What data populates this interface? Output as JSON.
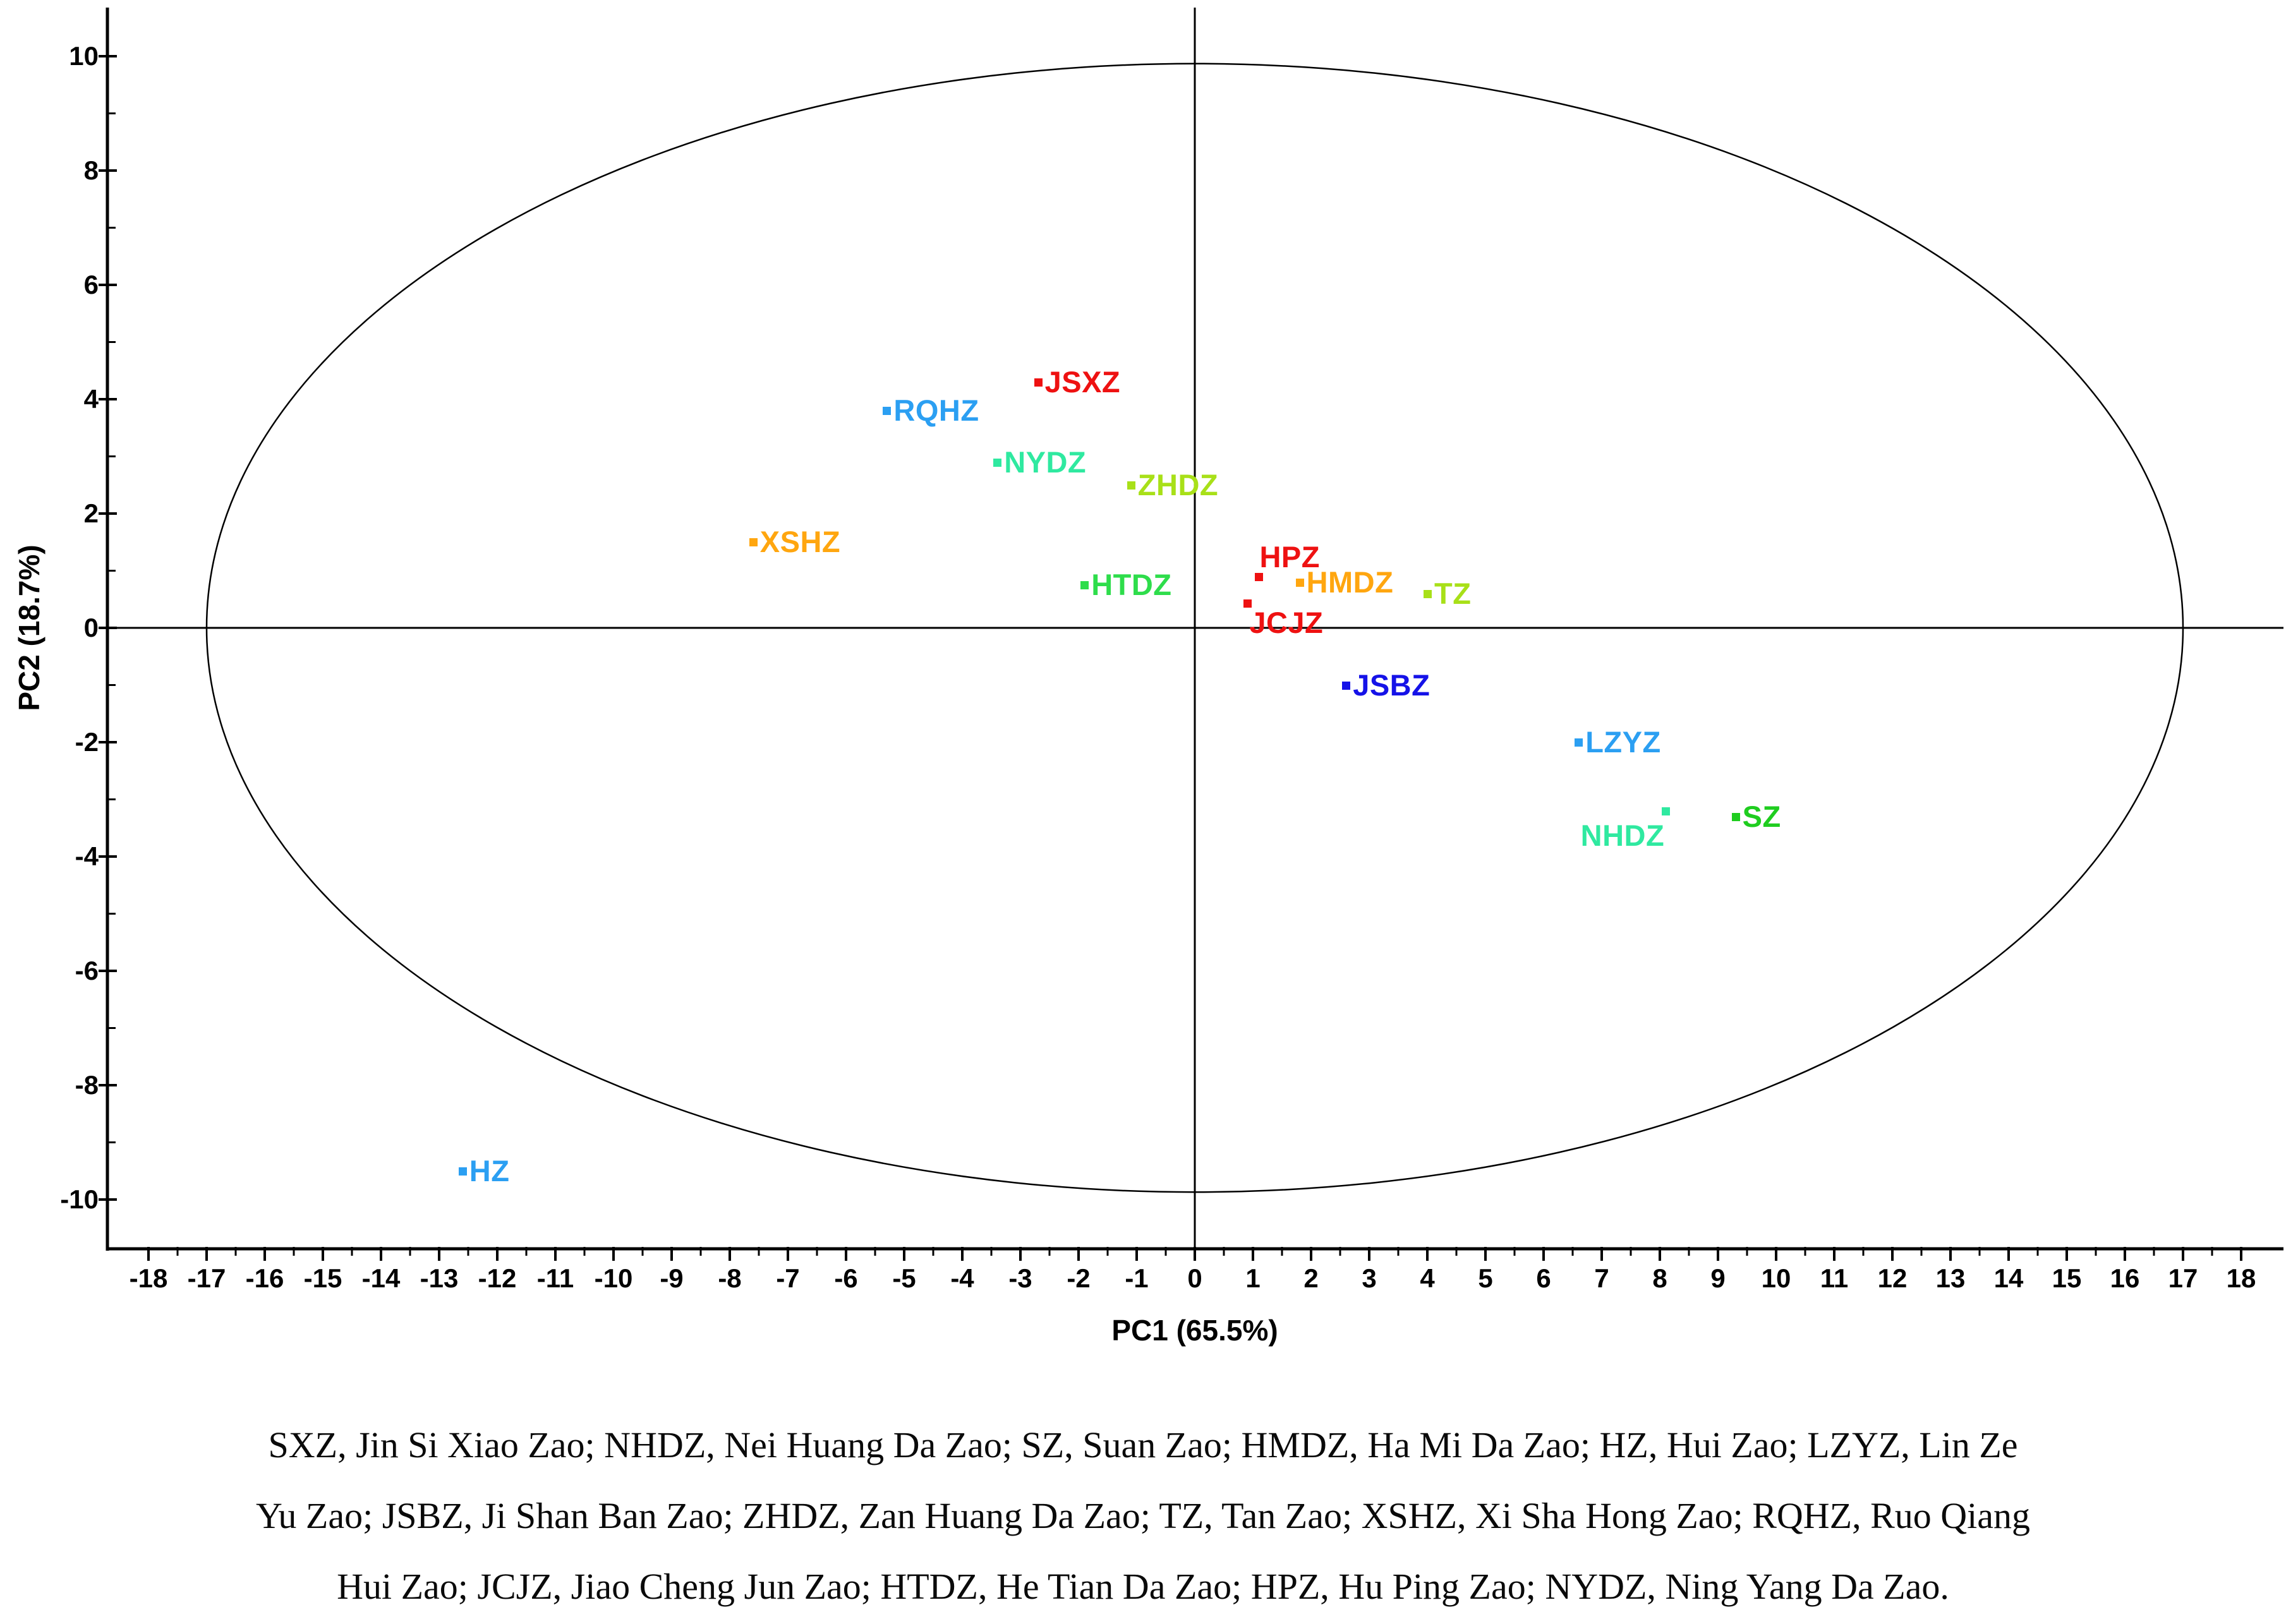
{
  "figure": {
    "background": "#ffffff",
    "axis_color": "#000000"
  },
  "chart_data": {
    "type": "scatter",
    "title": "",
    "xlabel": "PC1 (65.5%)",
    "ylabel": "PC2 (18.7%)",
    "xlim": [
      -18.7,
      18.7
    ],
    "ylim": [
      -10.9,
      10.9
    ],
    "grid": false,
    "legend": "none",
    "x_tick_labels": [
      -18,
      -17,
      -16,
      -15,
      -14,
      -13,
      -12,
      -11,
      -10,
      -9,
      -8,
      -7,
      -6,
      -5,
      -4,
      -3,
      -2,
      -1,
      0,
      1,
      2,
      3,
      4,
      5,
      6,
      7,
      8,
      9,
      10,
      11,
      12,
      13,
      14,
      15,
      16,
      17,
      18
    ],
    "y_tick_labels": [
      10,
      8,
      6,
      4,
      2,
      0,
      -2,
      -4,
      -6,
      -8,
      -10
    ],
    "x_minor_tick_step": 0.5,
    "y_minor_tick_step": 1,
    "zero_lines": true,
    "hotelling_ellipse": {
      "cx": 0,
      "cy": 0,
      "rx": 17.0,
      "ry": 9.87
    },
    "points": [
      {
        "label": "JSXZ",
        "x": -2.7,
        "y": 4.3,
        "color": "#EE1111",
        "label_pos": "right"
      },
      {
        "label": "RQHZ",
        "x": -5.3,
        "y": 3.8,
        "color": "#2B9FF2",
        "label_pos": "right"
      },
      {
        "label": "NYDZ",
        "x": -3.4,
        "y": 2.9,
        "color": "#2FE9A0",
        "label_pos": "right"
      },
      {
        "label": "ZHDZ",
        "x": -1.1,
        "y": 2.5,
        "color": "#A8E018",
        "label_pos": "right"
      },
      {
        "label": "XSHZ",
        "x": -7.6,
        "y": 1.5,
        "color": "#FFA60F",
        "label_pos": "right"
      },
      {
        "label": "HTDZ",
        "x": -1.9,
        "y": 0.75,
        "color": "#2EDD4B",
        "label_pos": "right"
      },
      {
        "label": "HPZ",
        "x": 1.1,
        "y": 0.9,
        "color": "#EE1111",
        "label_pos": "above"
      },
      {
        "label": "JCJZ",
        "x": 0.9,
        "y": 0.43,
        "color": "#EE1111",
        "label_pos": "below"
      },
      {
        "label": "HMDZ",
        "x": 1.8,
        "y": 0.8,
        "color": "#FFA60F",
        "label_pos": "right"
      },
      {
        "label": "TZ",
        "x": 4.0,
        "y": 0.6,
        "color": "#A8E018",
        "label_pos": "right"
      },
      {
        "label": "JSBZ",
        "x": 2.6,
        "y": -1.0,
        "color": "#1512E8",
        "label_pos": "right"
      },
      {
        "label": "LZYZ",
        "x": 6.6,
        "y": -2.0,
        "color": "#2B9FF2",
        "label_pos": "right"
      },
      {
        "label": "NHDZ",
        "x": 8.1,
        "y": -3.2,
        "color": "#2FE9A0",
        "label_pos": "left-below"
      },
      {
        "label": "SZ",
        "x": 9.3,
        "y": -3.3,
        "color": "#1FCD1F",
        "label_pos": "right"
      },
      {
        "label": "HZ",
        "x": -12.6,
        "y": -9.5,
        "color": "#2B9FF2",
        "label_pos": "right"
      }
    ]
  },
  "caption": {
    "lines": [
      "SXZ, Jin Si Xiao Zao; NHDZ, Nei Huang Da Zao; SZ, Suan Zao; HMDZ, Ha Mi Da Zao; HZ, Hui Zao; LZYZ, Lin Ze",
      "Yu Zao; JSBZ, Ji Shan Ban Zao; ZHDZ, Zan Huang Da Zao; TZ, Tan Zao; XSHZ, Xi Sha Hong Zao; RQHZ, Ruo Qiang",
      "Hui Zao; JCJZ, Jiao Cheng Jun Zao; HTDZ, He Tian Da Zao; HPZ, Hu Ping Zao; NYDZ, Ning Yang Da Zao."
    ]
  }
}
